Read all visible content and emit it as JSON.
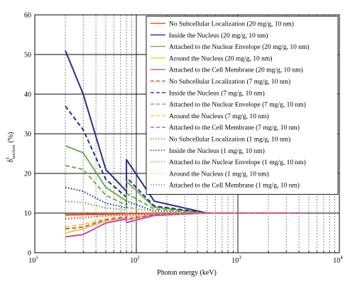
{
  "chart_data": {
    "type": "line",
    "title": "",
    "xlabel": "Photon energy (keV)",
    "ylabel_main": "δ",
    "ylabel_sup": "I",
    "ylabel_sub": "nucleus",
    "ylabel_unit": "(%)",
    "xscale": "log",
    "xlim": [
      10,
      10000
    ],
    "ylim": [
      0,
      60
    ],
    "yticks": [
      0,
      10,
      20,
      30,
      40,
      50,
      60
    ],
    "xticks": [
      {
        "value": 10,
        "base": "10",
        "exp": "1"
      },
      {
        "value": 100,
        "base": "10",
        "exp": "2"
      },
      {
        "value": 1000,
        "base": "10",
        "exp": "3"
      },
      {
        "value": 10000,
        "base": "10",
        "exp": "4"
      }
    ],
    "grid": true,
    "legend_position": "top-right",
    "series": [
      {
        "name": "No Subcellular Localization (20 mg/g, 10 nm)",
        "color": "#e8551e",
        "dash": "solid",
        "x": [
          20,
          30,
          50,
          80,
          80,
          150,
          500,
          4000
        ],
        "y": [
          9.5,
          9.6,
          9.7,
          9.8,
          9.8,
          9.9,
          10,
          10
        ]
      },
      {
        "name": "Inside the Nucleus (20 mg/g, 10 nm)",
        "color": "#2b2b8c",
        "dash": "solid",
        "x": [
          20,
          30,
          50,
          80,
          80,
          150,
          500,
          4000
        ],
        "y": [
          51,
          40,
          21,
          15.5,
          23.5,
          13,
          10,
          10
        ]
      },
      {
        "name": "Attached to the Nuclear Envelope (20 mg/g, 10 nm)",
        "color": "#6ab04c",
        "dash": "solid",
        "x": [
          20,
          30,
          50,
          80,
          80,
          150,
          500,
          4000
        ],
        "y": [
          27,
          25.2,
          16.5,
          13,
          18,
          11.5,
          10,
          10
        ]
      },
      {
        "name": "Around the Nucleus (20 mg/g, 10 nm)",
        "color": "#f2d21b",
        "dash": "solid",
        "x": [
          20,
          30,
          50,
          80,
          80,
          150,
          500,
          4000
        ],
        "y": [
          5,
          6,
          8,
          8.8,
          8.3,
          9.6,
          10,
          10
        ]
      },
      {
        "name": "Attached to the Cell Membrane (20 mg/g, 10 nm)",
        "color": "#c44bb0",
        "dash": "solid",
        "x": [
          20,
          30,
          50,
          80,
          80,
          150,
          500,
          4000
        ],
        "y": [
          4,
          4.6,
          7.5,
          8.5,
          7.6,
          9.4,
          10,
          10
        ]
      },
      {
        "name": "No Subcellular Localization (7 mg/g, 10 nm)",
        "color": "#e8551e",
        "dash": "dashed",
        "x": [
          20,
          30,
          50,
          80,
          80,
          150,
          500,
          4000
        ],
        "y": [
          9.6,
          9.7,
          9.8,
          9.8,
          9.9,
          9.9,
          10,
          10
        ]
      },
      {
        "name": "Inside the Nucleus (7 mg/g, 10 nm)",
        "color": "#2b2b8c",
        "dash": "dashed",
        "x": [
          20,
          30,
          50,
          80,
          80,
          150,
          500,
          4000
        ],
        "y": [
          37,
          31,
          18.5,
          14,
          19,
          11.8,
          10,
          10
        ]
      },
      {
        "name": "Attached to the Nuclear Envelope (7 mg/g, 10 nm)",
        "color": "#6ab04c",
        "dash": "dashed",
        "x": [
          20,
          30,
          50,
          80,
          80,
          150,
          500,
          4000
        ],
        "y": [
          22,
          21,
          14.5,
          12,
          15,
          11,
          10,
          10
        ]
      },
      {
        "name": "Around the Nucleus (7 mg/g, 10 nm)",
        "color": "#f2d21b",
        "dash": "dashed",
        "x": [
          20,
          30,
          50,
          80,
          80,
          150,
          500,
          4000
        ],
        "y": [
          6.5,
          7.2,
          8.6,
          9.1,
          8.7,
          9.7,
          10,
          10
        ]
      },
      {
        "name": "Attached to the Cell Membrane (7 mg/g, 10 nm)",
        "color": "#c44bb0",
        "dash": "dashed",
        "x": [
          20,
          30,
          50,
          80,
          80,
          150,
          500,
          4000
        ],
        "y": [
          6,
          6.5,
          8.3,
          9,
          8.4,
          9.6,
          10,
          10
        ]
      },
      {
        "name": "No Subcellular Localization (1 mg/g, 10 nm)",
        "color": "#e8551e",
        "dash": "dotted",
        "x": [
          20,
          30,
          50,
          80,
          80,
          150,
          500,
          4000
        ],
        "y": [
          9.8,
          9.8,
          9.9,
          9.9,
          9.9,
          10,
          10,
          10
        ]
      },
      {
        "name": "Inside the Nucleus (1 mg/g, 10 nm)",
        "color": "#2b2b8c",
        "dash": "dotted",
        "x": [
          20,
          30,
          50,
          80,
          80,
          150,
          500,
          4000
        ],
        "y": [
          16.5,
          15.5,
          12.5,
          11.3,
          13,
          10.5,
          10,
          10
        ]
      },
      {
        "name": "Attached to the Nuclear Envelope (1 mg/g, 10 nm)",
        "color": "#6ab04c",
        "dash": "dotted",
        "x": [
          20,
          30,
          50,
          80,
          80,
          150,
          500,
          4000
        ],
        "y": [
          13,
          12.6,
          11.3,
          10.8,
          11.5,
          10.3,
          10,
          10
        ]
      },
      {
        "name": "Around the Nucleus (1 mg/g, 10 nm)",
        "color": "#f2d21b",
        "dash": "dotted",
        "x": [
          20,
          30,
          50,
          80,
          80,
          150,
          500,
          4000
        ],
        "y": [
          8.8,
          9,
          9.4,
          9.6,
          9.4,
          9.9,
          10,
          10
        ]
      },
      {
        "name": "Attached to the Cell Membrane (1 mg/g, 10 nm)",
        "color": "#c44bb0",
        "dash": "dotted",
        "x": [
          20,
          30,
          50,
          80,
          80,
          150,
          500,
          4000
        ],
        "y": [
          8.5,
          8.8,
          9.3,
          9.5,
          9.3,
          9.8,
          10,
          10
        ]
      }
    ]
  }
}
